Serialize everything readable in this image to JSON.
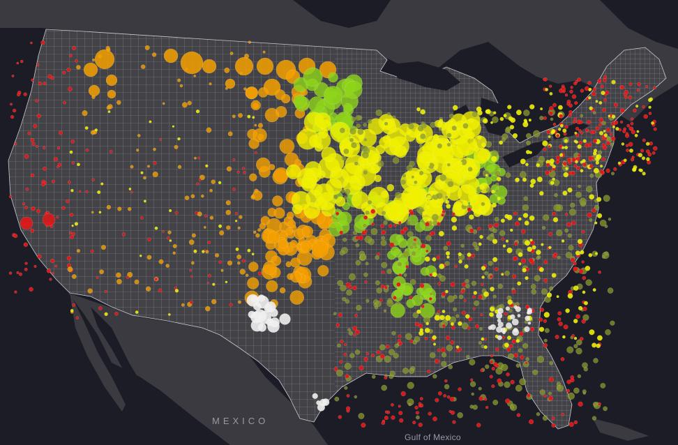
{
  "map": {
    "labels": {
      "mexico": "MEXICO",
      "gulf": "Gulf of Mexico"
    },
    "colors": {
      "water": "#1c1c26",
      "land_us": "#424247",
      "land_other": "#3a3a40",
      "county_border": "#c9c9d0",
      "red": "#e01818",
      "orange": "#f5a000",
      "yellow": "#f0f000",
      "green": "#8fd41a",
      "olive": "#8a9a2a",
      "white": "#f0f0f0"
    }
  }
}
